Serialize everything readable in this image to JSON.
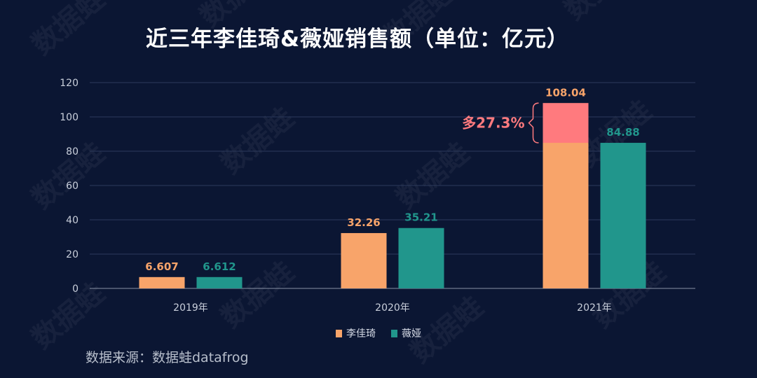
{
  "title": "近三年李佳琦&薇娅销售额（单位：亿元）",
  "source": "数据来源：数据蛙datafrog",
  "watermark": "数据蛙",
  "chart_data": {
    "type": "bar",
    "categories": [
      "2019年",
      "2020年",
      "2021年"
    ],
    "series": [
      {
        "name": "李佳琦",
        "values": [
          6.607,
          32.26,
          108.04
        ],
        "labels": [
          "6.607",
          "32.26",
          "108.04"
        ],
        "color": "#f8a46a"
      },
      {
        "name": "薇娅",
        "values": [
          6.612,
          35.21,
          84.88
        ],
        "labels": [
          "6.612",
          "35.21",
          "84.88"
        ],
        "color": "#21968c"
      }
    ],
    "ylim": [
      0,
      120
    ],
    "yticks": [
      "0",
      "20",
      "40",
      "60",
      "80",
      "100",
      "120"
    ],
    "grid": true,
    "legend_position": "bottom",
    "annotation": {
      "text": "多27.3%",
      "category_index": 2,
      "from_value": 84.88,
      "to_value": 108.04,
      "highlight_color": "#ff7a7e",
      "text_color": "#ff7a7e"
    }
  }
}
